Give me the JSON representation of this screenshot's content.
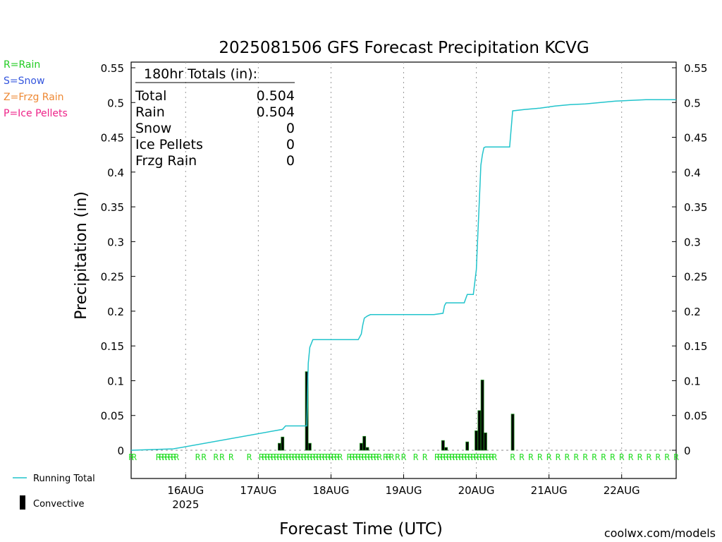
{
  "chart_data": {
    "type": "bar",
    "title": "2025081506 GFS Forecast Precipitation KCVG",
    "xlabel": "Forecast Time (UTC)",
    "ylabel": "Precipitation (in)",
    "ylim": [
      0,
      0.55
    ],
    "yticks": [
      0,
      0.05,
      0.1,
      0.15,
      0.2,
      0.25,
      0.3,
      0.35,
      0.4,
      0.45,
      0.5,
      0.55
    ],
    "ytick_labels": [
      "0",
      "0.05",
      "0.1",
      "0.15",
      "0.2",
      "0.25",
      "0.3",
      "0.35",
      "0.4",
      "0.45",
      "0.5",
      "0.55"
    ],
    "x_unit": "forecast hour",
    "xlim": [
      0,
      180
    ],
    "xticks": [
      {
        "hour": 18,
        "label": "16AUG",
        "sub": "2025"
      },
      {
        "hour": 42,
        "label": "17AUG",
        "sub": ""
      },
      {
        "hour": 66,
        "label": "18AUG",
        "sub": ""
      },
      {
        "hour": 90,
        "label": "19AUG",
        "sub": ""
      },
      {
        "hour": 114,
        "label": "20AUG",
        "sub": ""
      },
      {
        "hour": 138,
        "label": "21AUG",
        "sub": ""
      },
      {
        "hour": 162,
        "label": "22AUG",
        "sub": ""
      }
    ],
    "grid": "vertical dotted",
    "series": [
      {
        "name": "Convective",
        "type": "bar",
        "x": [
          49,
          50,
          58,
          59,
          76,
          77,
          78,
          103,
          104,
          111,
          114,
          115,
          116,
          117,
          126
        ],
        "values": [
          0.01,
          0.019,
          0.113,
          0.01,
          0.01,
          0.02,
          0.004,
          0.014,
          0.004,
          0.012,
          0.028,
          0.057,
          0.101,
          0.025,
          0.052
        ]
      },
      {
        "name": "Running Total",
        "type": "line",
        "x": [
          0,
          14,
          50,
          51,
          58,
          58.5,
          59,
          60,
          75,
          76,
          76.5,
          77,
          78,
          79,
          100,
          103,
          103.5,
          104,
          110,
          111,
          113,
          114,
          114.5,
          115,
          115.5,
          116,
          116.5,
          117,
          125,
          126,
          130,
          135,
          140,
          145,
          150,
          155,
          160,
          165,
          170,
          175,
          180
        ],
        "values": [
          0.0,
          0.002,
          0.03,
          0.035,
          0.035,
          0.125,
          0.148,
          0.159,
          0.159,
          0.167,
          0.18,
          0.19,
          0.193,
          0.195,
          0.195,
          0.197,
          0.208,
          0.212,
          0.212,
          0.224,
          0.224,
          0.26,
          0.31,
          0.36,
          0.41,
          0.425,
          0.435,
          0.436,
          0.436,
          0.488,
          0.49,
          0.492,
          0.495,
          0.497,
          0.498,
          0.5,
          0.502,
          0.503,
          0.504,
          0.504,
          0.504
        ]
      }
    ],
    "precip_type_markers": {
      "symbol": "R",
      "hours": [
        0,
        1,
        9,
        10,
        11,
        12,
        13,
        14,
        15,
        22,
        24,
        28,
        30,
        33,
        39,
        43,
        44,
        45,
        46,
        47,
        48,
        49,
        50,
        51,
        52,
        53,
        54,
        55,
        56,
        57,
        58,
        59,
        60,
        61,
        62,
        63,
        64,
        65,
        66,
        67,
        68,
        69,
        72,
        73,
        74,
        75,
        76,
        77,
        78,
        79,
        80,
        81,
        82,
        84,
        85,
        86,
        88,
        90,
        94,
        97,
        101,
        102,
        103,
        104,
        105,
        106,
        107,
        108,
        109,
        110,
        111,
        112,
        113,
        114,
        115,
        116,
        117,
        118,
        119,
        120,
        126,
        129,
        132,
        135,
        138,
        141,
        144,
        147,
        150,
        153,
        156,
        159,
        162,
        165,
        168,
        171,
        174,
        177,
        180
      ]
    },
    "totals_box": {
      "header": "180hr Totals (in):",
      "rows": [
        {
          "label": "Total",
          "value": "0.504"
        },
        {
          "label": "Rain",
          "value": "0.504"
        },
        {
          "label": "Snow",
          "value": "0"
        },
        {
          "label": "Ice Pellets",
          "value": "0"
        },
        {
          "label": "Frzg Rain",
          "value": "0"
        }
      ]
    },
    "type_legend": [
      {
        "text": "R=Rain",
        "color": "#22cc22"
      },
      {
        "text": "S=Snow",
        "color": "#3355dd"
      },
      {
        "text": "Z=Frzg Rain",
        "color": "#ee8833"
      },
      {
        "text": "P=Ice Pellets",
        "color": "#ee2288"
      }
    ],
    "series_legend": [
      {
        "text": "Running Total",
        "kind": "line"
      },
      {
        "text": "Convective",
        "kind": "bar"
      }
    ],
    "credit": "coolwx.com/models",
    "colors": {
      "line": "#22c4cc",
      "bar": "#000000",
      "bar_edge": "#1a8a1a",
      "marker": "#22dd22",
      "credit": "#dd3344"
    }
  }
}
